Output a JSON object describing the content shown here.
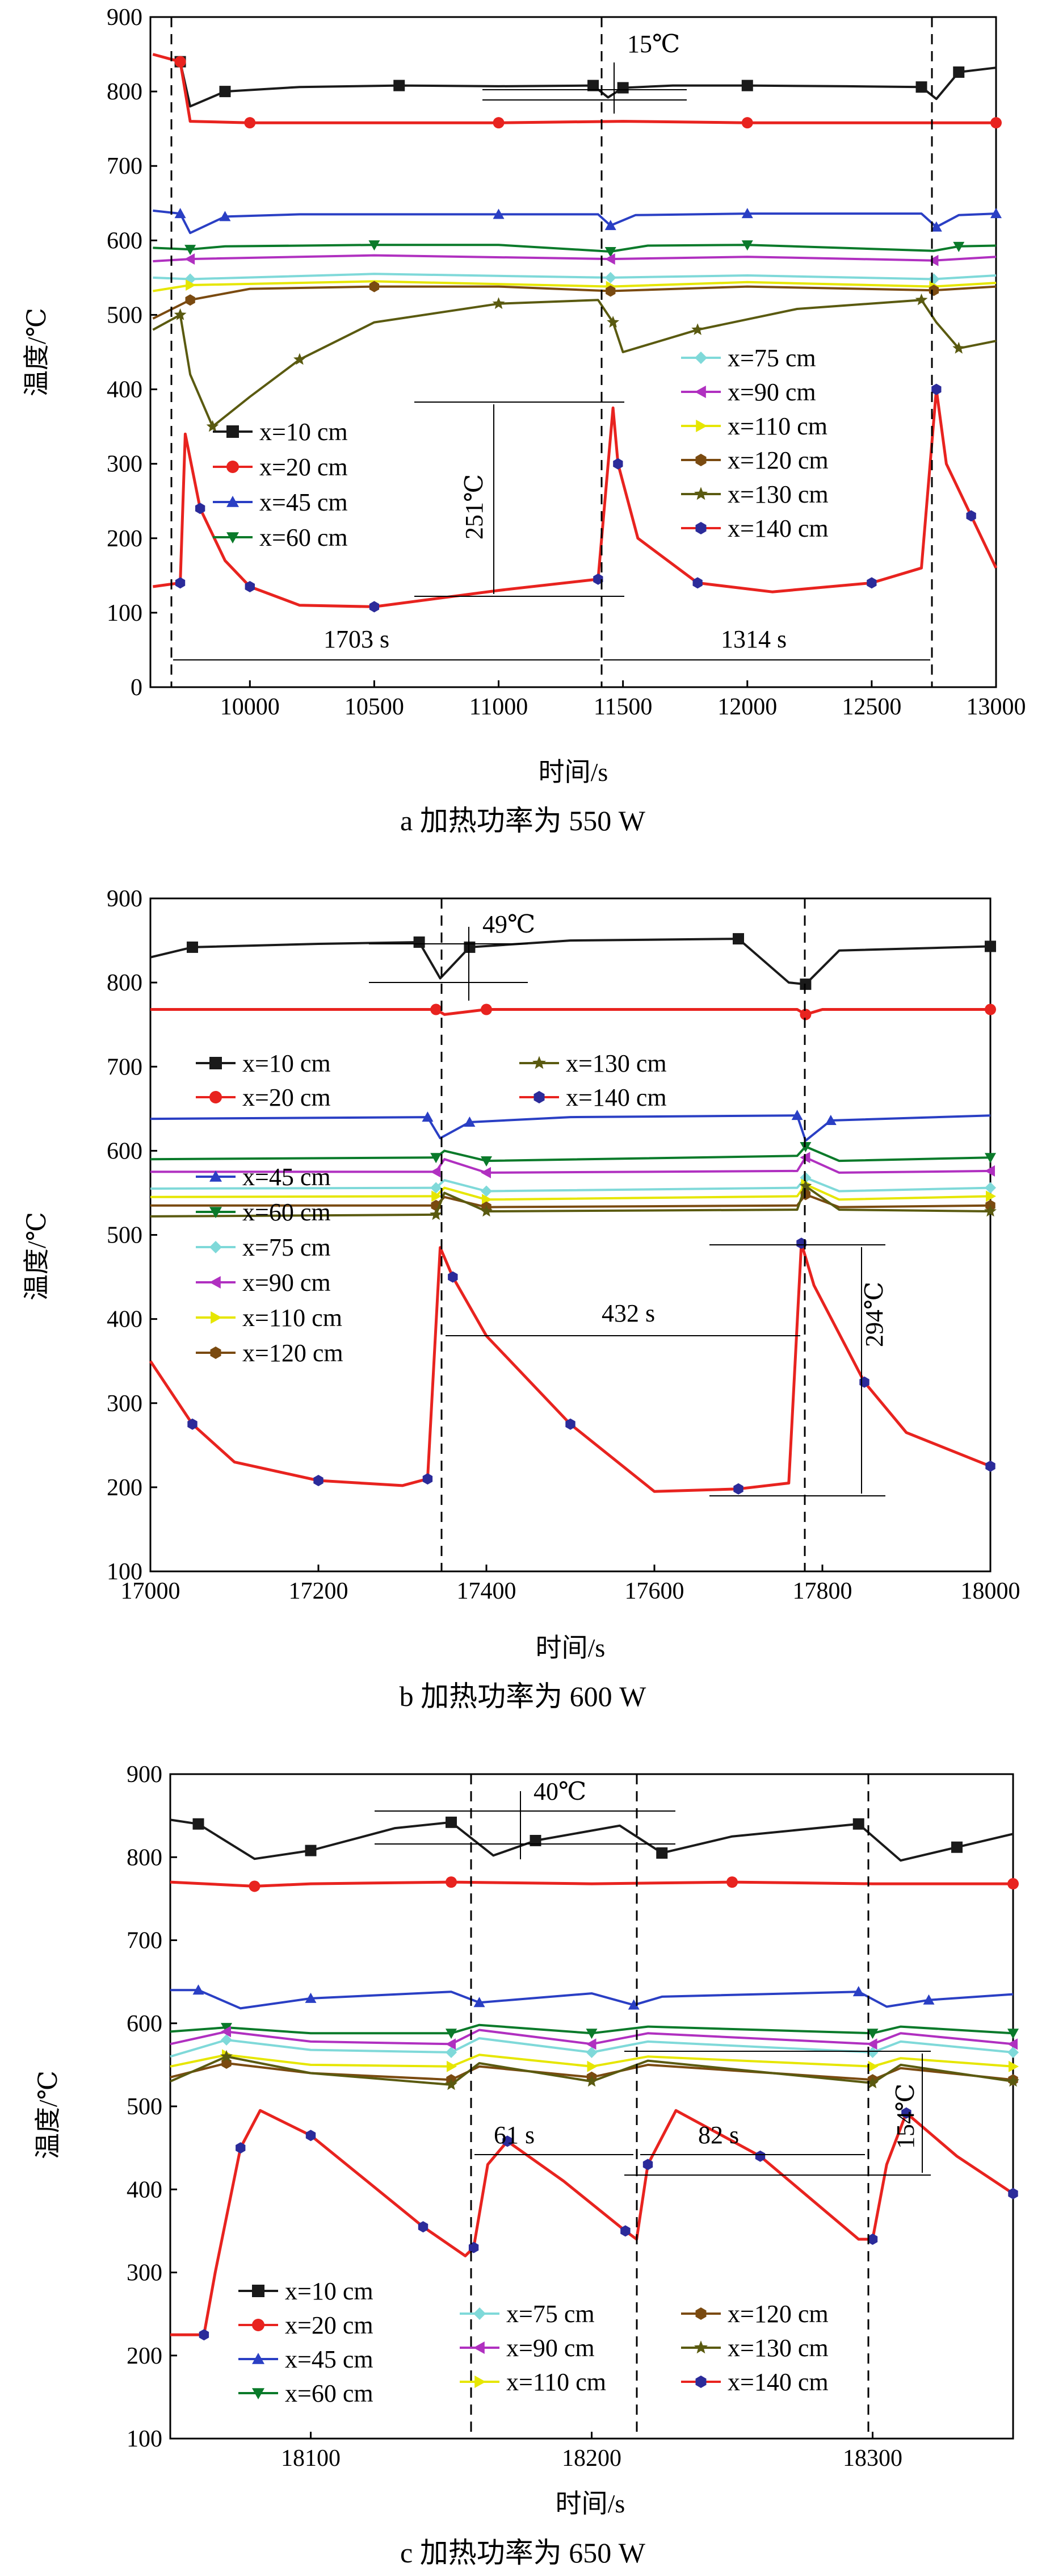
{
  "figure": {
    "title": ""
  },
  "colors": {
    "x=10 cm": "#1a1a1a",
    "x=20 cm": "#e8231f",
    "x=45 cm": "#2a3fc4",
    "x=60 cm": "#0a7a2a",
    "x=75 cm": "#7fd9d9",
    "x=90 cm": "#b030c0",
    "x=110 cm": "#e6e600",
    "x=120 cm": "#7a4a10",
    "x=130 cm": "#5a5a10",
    "x=140 cm": "#e8231f"
  },
  "chart_data": [
    {
      "type": "line",
      "caption": "a  加热功率为 550 W",
      "xlabel": "时间/s",
      "ylabel": "温度/℃",
      "xlim": [
        9600,
        13000
      ],
      "ylim": [
        0,
        900
      ],
      "xticks": [
        "10000",
        "10500",
        "11000",
        "11500",
        "12000",
        "12500",
        "13000"
      ],
      "yticks": [
        "0",
        "100",
        "200",
        "300",
        "400",
        "500",
        "600",
        "700",
        "800",
        "900"
      ],
      "legend_left": [
        "x=10 cm",
        "x=20 cm",
        "x=45 cm",
        "x=60 cm"
      ],
      "legend_right": [
        "x=75 cm",
        "x=90 cm",
        "x=110 cm",
        "x=120 cm",
        "x=130 cm",
        "x=140 cm"
      ],
      "annotations": {
        "a1": "15℃",
        "a2": "251℃",
        "a3": "1703 s",
        "a4": "1314 s"
      },
      "series": [
        {
          "name": "x=10 cm",
          "marker": "square",
          "x": [
            9610,
            9720,
            9760,
            9900,
            10200,
            10600,
            11000,
            11380,
            11440,
            11500,
            11700,
            12000,
            12400,
            12700,
            12760,
            12850,
            13000
          ],
          "y": [
            850,
            840,
            780,
            800,
            806,
            808,
            807,
            808,
            792,
            805,
            808,
            808,
            807,
            806,
            790,
            826,
            832
          ]
        },
        {
          "name": "x=20 cm",
          "marker": "circle",
          "x": [
            9610,
            9720,
            9760,
            10000,
            10500,
            11000,
            11500,
            12000,
            12500,
            13000
          ],
          "y": [
            850,
            840,
            760,
            758,
            758,
            758,
            760,
            758,
            758,
            758
          ]
        },
        {
          "name": "x=45 cm",
          "marker": "triangle-up",
          "x": [
            9610,
            9720,
            9760,
            9900,
            10200,
            11000,
            11400,
            11450,
            11550,
            12000,
            12700,
            12760,
            12850,
            13000
          ],
          "y": [
            640,
            636,
            610,
            632,
            635,
            635,
            635,
            620,
            634,
            636,
            636,
            618,
            634,
            636
          ]
        },
        {
          "name": "x=60 cm",
          "marker": "triangle-down",
          "x": [
            9610,
            9760,
            9900,
            10500,
            11000,
            11450,
            11600,
            12000,
            12750,
            12850,
            13000
          ],
          "y": [
            590,
            588,
            592,
            594,
            594,
            585,
            593,
            594,
            586,
            592,
            593
          ]
        },
        {
          "name": "x=75 cm",
          "marker": "diamond",
          "x": [
            9610,
            9760,
            10500,
            11450,
            12000,
            12750,
            13000
          ],
          "y": [
            550,
            548,
            555,
            550,
            553,
            548,
            553
          ]
        },
        {
          "name": "x=90 cm",
          "marker": "triangle-left",
          "x": [
            9610,
            9760,
            10500,
            11450,
            12000,
            12750,
            13000
          ],
          "y": [
            572,
            575,
            580,
            575,
            578,
            573,
            578
          ]
        },
        {
          "name": "x=110 cm",
          "marker": "triangle-right",
          "x": [
            9610,
            9760,
            10500,
            11450,
            12000,
            12750,
            13000
          ],
          "y": [
            532,
            540,
            545,
            538,
            544,
            538,
            543
          ]
        },
        {
          "name": "x=120 cm",
          "marker": "hexagon",
          "x": [
            9610,
            9760,
            10000,
            10500,
            11000,
            11450,
            12000,
            12750,
            13000
          ],
          "y": [
            495,
            520,
            535,
            538,
            538,
            532,
            538,
            533,
            538
          ]
        },
        {
          "name": "x=130 cm",
          "marker": "star",
          "x": [
            9610,
            9720,
            9760,
            9850,
            10000,
            10200,
            10500,
            11000,
            11400,
            11460,
            11500,
            11800,
            12200,
            12700,
            12760,
            12850,
            13000
          ],
          "y": [
            480,
            500,
            420,
            350,
            390,
            440,
            490,
            515,
            520,
            490,
            450,
            480,
            508,
            520,
            490,
            455,
            465
          ]
        },
        {
          "name": "x=140 cm",
          "marker": "hexagon-dot",
          "x": [
            9610,
            9720,
            9740,
            9800,
            9900,
            10000,
            10200,
            10500,
            11000,
            11400,
            11460,
            11480,
            11560,
            11800,
            12100,
            12500,
            12700,
            12760,
            12800,
            12900,
            13000
          ],
          "y": [
            135,
            140,
            340,
            240,
            170,
            135,
            110,
            108,
            130,
            145,
            375,
            300,
            200,
            140,
            128,
            140,
            160,
            400,
            300,
            230,
            160
          ]
        }
      ]
    },
    {
      "type": "line",
      "caption": "b  加热功率为 600 W",
      "xlabel": "时间/s",
      "ylabel": "温度/℃",
      "xlim": [
        17000,
        18000
      ],
      "ylim": [
        100,
        900
      ],
      "xticks": [
        "17000",
        "17200",
        "17400",
        "17600",
        "17800",
        "18000"
      ],
      "yticks": [
        "100",
        "200",
        "300",
        "400",
        "500",
        "600",
        "700",
        "800",
        "900"
      ],
      "legend_top_left": [
        "x=10 cm",
        "x=20 cm"
      ],
      "legend_top_right": [
        "x=130 cm",
        "x=140 cm"
      ],
      "legend_bottom": [
        "x=45 cm",
        "x=60 cm",
        "x=75 cm",
        "x=90 cm",
        "x=110 cm",
        "x=120 cm"
      ],
      "annotations": {
        "b1": "49℃",
        "b2": "432 s",
        "b3": "294℃"
      },
      "series": [
        {
          "name": "x=10 cm",
          "marker": "square",
          "x": [
            17000,
            17050,
            17200,
            17320,
            17345,
            17380,
            17500,
            17700,
            17760,
            17780,
            17820,
            18000
          ],
          "y": [
            830,
            842,
            846,
            848,
            805,
            842,
            850,
            852,
            800,
            798,
            838,
            843
          ]
        },
        {
          "name": "x=20 cm",
          "marker": "circle",
          "x": [
            17000,
            17340,
            17350,
            17400,
            17770,
            17780,
            17800,
            18000
          ],
          "y": [
            768,
            768,
            762,
            768,
            768,
            762,
            768,
            768
          ]
        },
        {
          "name": "x=45 cm",
          "marker": "triangle-up",
          "x": [
            17000,
            17330,
            17345,
            17380,
            17500,
            17770,
            17780,
            17810,
            18000
          ],
          "y": [
            638,
            640,
            615,
            634,
            640,
            642,
            612,
            636,
            642
          ]
        },
        {
          "name": "x=60 cm",
          "marker": "triangle-down",
          "x": [
            17000,
            17340,
            17350,
            17400,
            17770,
            17780,
            17820,
            18000
          ],
          "y": [
            590,
            592,
            600,
            588,
            594,
            605,
            588,
            592
          ]
        },
        {
          "name": "x=75 cm",
          "marker": "diamond",
          "x": [
            17000,
            17340,
            17350,
            17400,
            17770,
            17780,
            17820,
            18000
          ],
          "y": [
            555,
            556,
            565,
            552,
            556,
            568,
            552,
            556
          ]
        },
        {
          "name": "x=90 cm",
          "marker": "triangle-left",
          "x": [
            17000,
            17340,
            17350,
            17400,
            17770,
            17780,
            17820,
            18000
          ],
          "y": [
            575,
            575,
            590,
            574,
            576,
            592,
            574,
            576
          ]
        },
        {
          "name": "x=110 cm",
          "marker": "triangle-right",
          "x": [
            17000,
            17340,
            17350,
            17400,
            17770,
            17780,
            17820,
            18000
          ],
          "y": [
            545,
            546,
            556,
            542,
            546,
            560,
            542,
            546
          ]
        },
        {
          "name": "x=120 cm",
          "marker": "hexagon",
          "x": [
            17000,
            17340,
            17350,
            17400,
            17770,
            17780,
            17820,
            18000
          ],
          "y": [
            535,
            535,
            545,
            533,
            535,
            548,
            533,
            535
          ]
        },
        {
          "name": "x=130 cm",
          "marker": "star",
          "x": [
            17000,
            17340,
            17350,
            17400,
            17770,
            17780,
            17820,
            18000
          ],
          "y": [
            522,
            524,
            550,
            528,
            530,
            558,
            530,
            528
          ]
        },
        {
          "name": "x=140 cm",
          "marker": "hexagon-dot",
          "x": [
            17000,
            17050,
            17100,
            17200,
            17300,
            17330,
            17345,
            17360,
            17400,
            17500,
            17600,
            17700,
            17760,
            17775,
            17790,
            17850,
            17900,
            18000
          ],
          "y": [
            350,
            275,
            230,
            208,
            202,
            210,
            485,
            450,
            380,
            275,
            195,
            198,
            205,
            490,
            440,
            325,
            265,
            225
          ]
        }
      ]
    },
    {
      "type": "line",
      "caption": "c  加热功率为 650 W",
      "xlabel": "时间/s",
      "ylabel": "温度/℃",
      "xlim": [
        18050,
        18350
      ],
      "ylim": [
        100,
        900
      ],
      "xticks": [
        "18100",
        "18200",
        "18300"
      ],
      "yticks": [
        "100",
        "200",
        "300",
        "400",
        "500",
        "600",
        "700",
        "800",
        "900"
      ],
      "legend_col1": [
        "x=10 cm",
        "x=20 cm",
        "x=45 cm",
        "x=60 cm"
      ],
      "legend_col2": [
        "x=75 cm",
        "x=90 cm",
        "x=110 cm"
      ],
      "legend_col3": [
        "x=120 cm",
        "x=130 cm",
        "x=140 cm"
      ],
      "annotations": {
        "c1": "40℃",
        "c2": "61 s",
        "c3": "82 s",
        "c4": "154℃"
      },
      "series": [
        {
          "name": "x=10 cm",
          "marker": "square",
          "x": [
            18050,
            18060,
            18080,
            18100,
            18130,
            18150,
            18165,
            18180,
            18210,
            18225,
            18250,
            18295,
            18310,
            18330,
            18350
          ],
          "y": [
            845,
            840,
            798,
            808,
            835,
            842,
            802,
            820,
            838,
            805,
            825,
            840,
            796,
            812,
            828
          ]
        },
        {
          "name": "x=20 cm",
          "marker": "circle",
          "x": [
            18050,
            18080,
            18100,
            18150,
            18200,
            18250,
            18300,
            18350
          ],
          "y": [
            770,
            765,
            768,
            770,
            768,
            770,
            768,
            768
          ]
        },
        {
          "name": "x=45 cm",
          "marker": "triangle-up",
          "x": [
            18050,
            18060,
            18075,
            18100,
            18150,
            18160,
            18200,
            18215,
            18225,
            18295,
            18305,
            18320,
            18350
          ],
          "y": [
            640,
            640,
            618,
            630,
            638,
            625,
            636,
            622,
            632,
            638,
            620,
            628,
            635
          ]
        },
        {
          "name": "x=60 cm",
          "marker": "triangle-down",
          "x": [
            18050,
            18070,
            18100,
            18150,
            18160,
            18200,
            18220,
            18300,
            18310,
            18350
          ],
          "y": [
            590,
            595,
            588,
            588,
            598,
            588,
            596,
            588,
            596,
            588
          ]
        },
        {
          "name": "x=75 cm",
          "marker": "diamond",
          "x": [
            18050,
            18070,
            18100,
            18150,
            18160,
            18200,
            18220,
            18300,
            18310,
            18350
          ],
          "y": [
            560,
            580,
            568,
            565,
            582,
            565,
            578,
            565,
            578,
            565
          ]
        },
        {
          "name": "x=90 cm",
          "marker": "triangle-left",
          "x": [
            18050,
            18070,
            18100,
            18150,
            18160,
            18200,
            18220,
            18300,
            18310,
            18350
          ],
          "y": [
            575,
            590,
            578,
            575,
            592,
            575,
            588,
            575,
            588,
            575
          ]
        },
        {
          "name": "x=110 cm",
          "marker": "triangle-right",
          "x": [
            18050,
            18070,
            18100,
            18150,
            18160,
            18200,
            18220,
            18300,
            18310,
            18350
          ],
          "y": [
            548,
            562,
            550,
            548,
            562,
            548,
            560,
            548,
            558,
            548
          ]
        },
        {
          "name": "x=120 cm",
          "marker": "hexagon",
          "x": [
            18050,
            18070,
            18100,
            18150,
            18160,
            18200,
            18220,
            18300,
            18310,
            18350
          ],
          "y": [
            535,
            552,
            540,
            532,
            548,
            535,
            550,
            532,
            546,
            532
          ]
        },
        {
          "name": "x=130 cm",
          "marker": "star",
          "x": [
            18050,
            18070,
            18100,
            18150,
            18160,
            18200,
            18220,
            18300,
            18310,
            18350
          ],
          "y": [
            530,
            560,
            540,
            526,
            552,
            530,
            555,
            528,
            550,
            530
          ]
        },
        {
          "name": "x=140 cm",
          "marker": "hexagon-dot",
          "x": [
            18050,
            18062,
            18066,
            18075,
            18082,
            18100,
            18120,
            18140,
            18155,
            18158,
            18163,
            18170,
            18190,
            18212,
            18216,
            18220,
            18230,
            18260,
            18295,
            18300,
            18305,
            18312,
            18330,
            18350
          ],
          "y": [
            225,
            225,
            300,
            450,
            495,
            465,
            410,
            355,
            320,
            330,
            430,
            458,
            410,
            350,
            340,
            430,
            495,
            440,
            340,
            340,
            430,
            492,
            440,
            395
          ]
        }
      ]
    }
  ]
}
